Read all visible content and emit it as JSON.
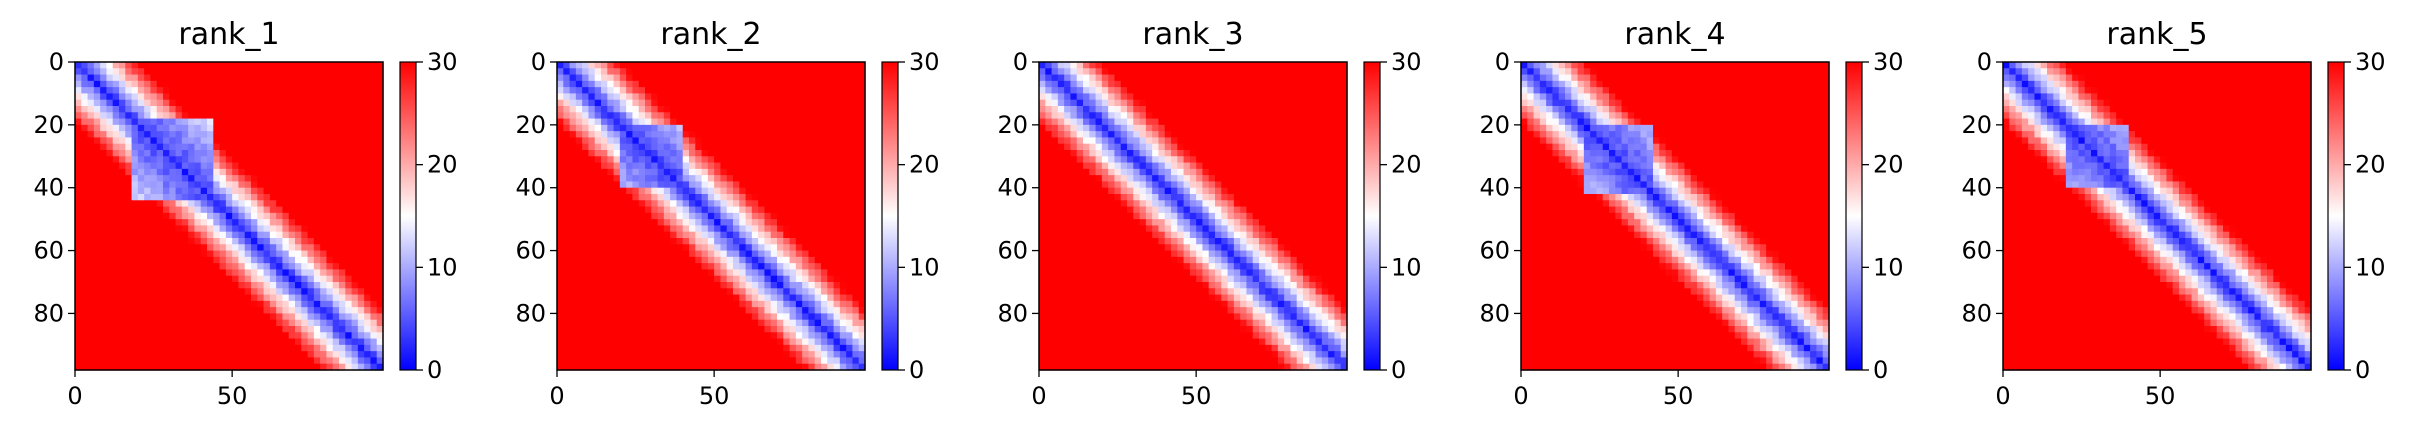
{
  "chart_data": [
    {
      "type": "heatmap",
      "title": "rank_1",
      "xlim": [
        0,
        98
      ],
      "ylim": [
        98,
        0
      ],
      "xticks": [
        "0",
        "50"
      ],
      "yticks": [
        "0",
        "20",
        "40",
        "60",
        "80"
      ],
      "colorbar": {
        "ticks": [
          "0",
          "10",
          "20",
          "30"
        ],
        "range": [
          0,
          30
        ],
        "cmap": "bwr"
      },
      "colors": {
        "low": "#0000ff",
        "mid": "#ffffff",
        "high": "#ff0000"
      },
      "domains": [
        [
          18,
          42
        ]
      ],
      "band_width": 4
    },
    {
      "type": "heatmap",
      "title": "rank_2",
      "xlim": [
        0,
        98
      ],
      "ylim": [
        98,
        0
      ],
      "xticks": [
        "0",
        "50"
      ],
      "yticks": [
        "0",
        "20",
        "40",
        "60",
        "80"
      ],
      "colorbar": {
        "ticks": [
          "0",
          "10",
          "20",
          "30"
        ],
        "range": [
          0,
          30
        ],
        "cmap": "bwr"
      },
      "colors": {
        "low": "#0000ff",
        "mid": "#ffffff",
        "high": "#ff0000"
      },
      "domains": [
        [
          20,
          38
        ]
      ],
      "band_width": 4
    },
    {
      "type": "heatmap",
      "title": "rank_3",
      "xlim": [
        0,
        98
      ],
      "ylim": [
        98,
        0
      ],
      "xticks": [
        "0",
        "50"
      ],
      "yticks": [
        "0",
        "20",
        "40",
        "60",
        "80"
      ],
      "colorbar": {
        "ticks": [
          "0",
          "10",
          "20",
          "30"
        ],
        "range": [
          0,
          30
        ],
        "cmap": "bwr"
      },
      "colors": {
        "low": "#0000ff",
        "mid": "#ffffff",
        "high": "#ff0000"
      },
      "domains": [],
      "band_width": 4
    },
    {
      "type": "heatmap",
      "title": "rank_4",
      "xlim": [
        0,
        98
      ],
      "ylim": [
        98,
        0
      ],
      "xticks": [
        "0",
        "50"
      ],
      "yticks": [
        "0",
        "20",
        "40",
        "60",
        "80"
      ],
      "colorbar": {
        "ticks": [
          "0",
          "10",
          "20",
          "30"
        ],
        "range": [
          0,
          30
        ],
        "cmap": "bwr"
      },
      "colors": {
        "low": "#0000ff",
        "mid": "#ffffff",
        "high": "#ff0000"
      },
      "domains": [
        [
          20,
          40
        ]
      ],
      "band_width": 4
    },
    {
      "type": "heatmap",
      "title": "rank_5",
      "xlim": [
        0,
        98
      ],
      "ylim": [
        98,
        0
      ],
      "xticks": [
        "0",
        "50"
      ],
      "yticks": [
        "0",
        "20",
        "40",
        "60",
        "80"
      ],
      "colorbar": {
        "ticks": [
          "0",
          "10",
          "20",
          "30"
        ],
        "range": [
          0,
          30
        ],
        "cmap": "bwr"
      },
      "colors": {
        "low": "#0000ff",
        "mid": "#ffffff",
        "high": "#ff0000"
      },
      "domains": [
        [
          20,
          38
        ]
      ],
      "band_width": 4
    }
  ]
}
